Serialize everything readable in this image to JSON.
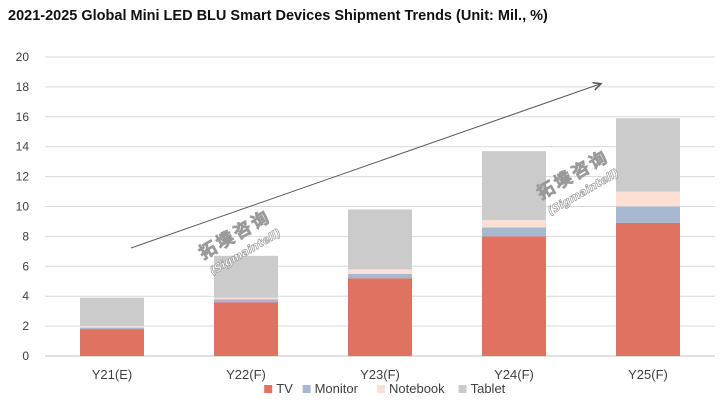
{
  "chart_data": {
    "type": "bar",
    "stacked": true,
    "title": "2021-2025 Global Mini LED BLU Smart Devices Shipment Trends (Unit: Mil., %)",
    "categories": [
      "Y21(E)",
      "Y22(F)",
      "Y23(F)",
      "Y24(F)",
      "Y25(F)"
    ],
    "series": [
      {
        "name": "TV",
        "color": "#e07262",
        "values": [
          1.8,
          3.6,
          5.2,
          8.0,
          8.9
        ]
      },
      {
        "name": "Monitor",
        "color": "#a7b9d0",
        "values": [
          0.1,
          0.2,
          0.3,
          0.6,
          1.1
        ]
      },
      {
        "name": "Notebook",
        "color": "#fbe0d3",
        "values": [
          0.1,
          0.1,
          0.3,
          0.5,
          1.0
        ]
      },
      {
        "name": "Tablet",
        "color": "#cbcbcb",
        "values": [
          1.9,
          2.8,
          4.0,
          4.6,
          4.9
        ]
      }
    ],
    "ylim": [
      0,
      20
    ],
    "yticks": [
      0,
      2,
      4,
      6,
      8,
      10,
      12,
      14,
      16,
      18,
      20
    ],
    "grid": true,
    "legend_position": "bottom",
    "trend_arrow": "increasing"
  },
  "watermark": {
    "text": "拓墣咨询",
    "sub": "(Sigmaintell)"
  },
  "colors": {
    "grid": "#d9d9d9",
    "axis": "#bfbfbf",
    "arrow": "#595959"
  }
}
